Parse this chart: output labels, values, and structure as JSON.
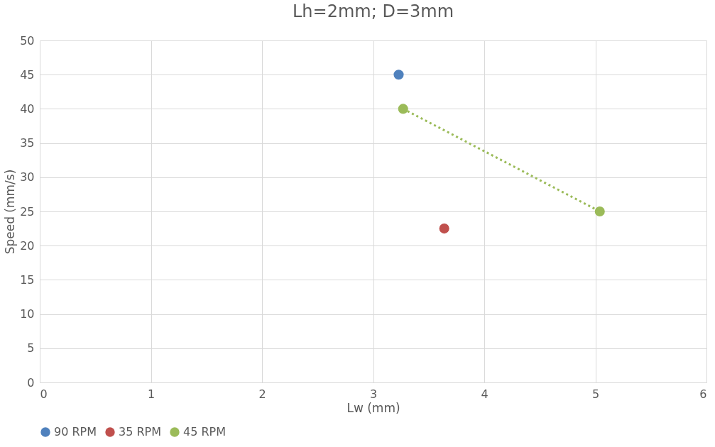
{
  "chart_data": {
    "type": "scatter",
    "title": "Lh=2mm; D=3mm",
    "xlabel": "Lw (mm)",
    "ylabel": "Speed (mm/s)",
    "xlim": [
      0,
      6
    ],
    "xticks": [
      0,
      1,
      2,
      3,
      4,
      5,
      6
    ],
    "ylim": [
      0,
      50
    ],
    "yticks": [
      0,
      5,
      10,
      15,
      20,
      25,
      30,
      35,
      40,
      45,
      50
    ],
    "grid": true,
    "legend": "bottom",
    "marker": "circle",
    "series": [
      {
        "name": "90 RPM",
        "color": "#4f81bd",
        "x": [
          3.23
        ],
        "values": [
          45
        ]
      },
      {
        "name": "35 RPM",
        "color": "#c0504d",
        "x": [
          3.64
        ],
        "values": [
          22.5
        ]
      },
      {
        "name": "45 RPM",
        "color": "#9bbb59",
        "x": [
          3.27,
          5.04
        ],
        "values": [
          40,
          25
        ]
      },
      {
        "type": "line",
        "color": "#9bbb59",
        "x": [
          3.27,
          5.04
        ],
        "values": [
          40,
          25
        ],
        "line_style": "dotted",
        "marker": "none"
      }
    ]
  }
}
